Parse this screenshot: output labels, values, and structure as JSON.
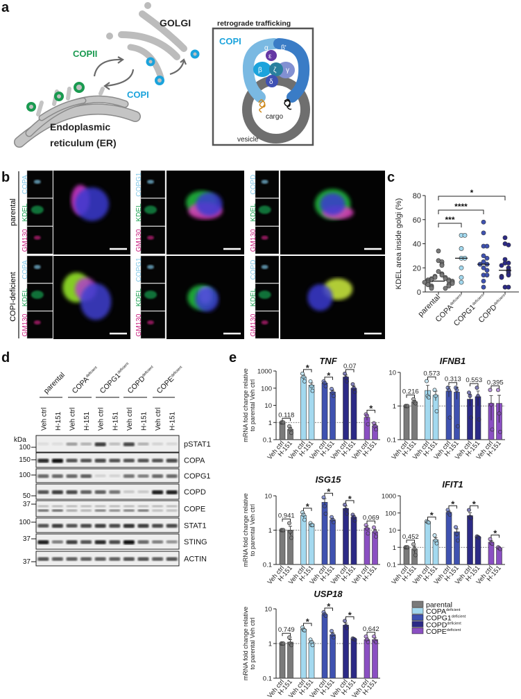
{
  "panel_labels": [
    "a",
    "b",
    "c",
    "d",
    "e"
  ],
  "panel_a": {
    "golgi": "GOLGI",
    "copii": "COPII",
    "copi": "COPI",
    "er_line1": "Endoplasmic",
    "er_line2": "reticulum (ER)",
    "box_title": "retrograde trafficking",
    "box_copi": "COPI",
    "subunits": [
      "α",
      "β'",
      "ε",
      "β",
      "ζ",
      "γ",
      "δ"
    ],
    "cargo": "cargo",
    "vesicle": "vesicle",
    "colors": {
      "copii": "#1a9a50",
      "copi": "#1ba3dc",
      "er": "#bdbdbd"
    }
  },
  "panel_b": {
    "rows": [
      "parental",
      "COPI-deficient"
    ],
    "groups": [
      {
        "target": "COPA",
        "channels": [
          "COPA",
          "KDEL",
          "GM130"
        ]
      },
      {
        "target": "COPG1",
        "channels": [
          "COPG1",
          "KDEL",
          "GM130"
        ]
      },
      {
        "target": "COPD",
        "channels": [
          "COPD",
          "KDEL",
          "GM130"
        ]
      }
    ],
    "channel_colors": {
      "target": "#7fc6e6",
      "KDEL": "#19a050",
      "GM130": "#c8207f"
    }
  },
  "legend": {
    "items": [
      {
        "name": "parental",
        "sup": "",
        "color": "#7a7a7a"
      },
      {
        "name": "COPA",
        "sup": "deficient",
        "color": "#a3d9ef"
      },
      {
        "name": "COPG1",
        "sup": "deficient",
        "color": "#3f52b0"
      },
      {
        "name": "COPD",
        "sup": "deficient",
        "color": "#2c2a86"
      },
      {
        "name": "COPE",
        "sup": "deficient",
        "color": "#8a4fc2"
      }
    ]
  },
  "panel_d": {
    "groups": [
      {
        "name": "parental",
        "sup": ""
      },
      {
        "name": "COPA",
        "sup": "deficient"
      },
      {
        "name": "COPG1",
        "sup": "deficient"
      },
      {
        "name": "COPD",
        "sup": "deficient"
      },
      {
        "name": "COPE",
        "sup": "deficient"
      }
    ],
    "lanes": [
      "Veh ctrl",
      "H-151"
    ],
    "kda_label": "kDa",
    "markers": [
      "100",
      "150",
      "100",
      "50",
      "37",
      "100",
      "37",
      "37"
    ],
    "blots": [
      {
        "name": "pSTAT1",
        "intensity": [
          0.05,
          0.05,
          0.35,
          0.25,
          0.8,
          0.2,
          0.75,
          0.25,
          0.1,
          0.08
        ]
      },
      {
        "name": "COPA",
        "intensity": [
          0.9,
          1,
          0.7,
          0.7,
          0.75,
          0.7,
          0.7,
          0.7,
          0.7,
          0.75
        ]
      },
      {
        "name": "COPG1",
        "intensity": [
          0.6,
          0.6,
          0.6,
          0.65,
          0.1,
          0.1,
          0.55,
          0.5,
          0.6,
          0.6
        ]
      },
      {
        "name": "COPD",
        "intensity": [
          0.7,
          0.8,
          0.75,
          0.65,
          0.65,
          0.55,
          0.15,
          0.15,
          0.95,
          0.95
        ]
      },
      {
        "name": "COPE",
        "intensity": [
          0.6,
          0.6,
          0.3,
          0.25,
          0.5,
          0.45,
          0.5,
          0.55,
          0.2,
          0.2
        ]
      },
      {
        "name": "STAT1",
        "intensity": [
          0.7,
          0.8,
          0.7,
          0.75,
          0.8,
          0.75,
          0.85,
          0.8,
          0.75,
          0.75
        ]
      },
      {
        "name": "STING",
        "intensity": [
          0.95,
          0.5,
          0.8,
          0.7,
          0.9,
          0.75,
          1,
          0.6,
          0.5,
          0.4
        ]
      },
      {
        "name": "ACTIN",
        "intensity": [
          0.7,
          0.65,
          0.65,
          0.65,
          0.65,
          0.65,
          0.7,
          0.7,
          0.65,
          0.7
        ]
      }
    ]
  },
  "chart_data": [
    {
      "type": "scatter",
      "ylabel": "KDEL area inside golgi (%)",
      "ylim": [
        0,
        80
      ],
      "yticks": [
        "0",
        "20",
        "40",
        "60",
        "80"
      ],
      "categories": [
        {
          "name": "parental",
          "sup": "",
          "color": "#7a7a7a"
        },
        {
          "name": "COPA",
          "sup": "deficient",
          "color": "#a3d9ef"
        },
        {
          "name": "COPG1",
          "sup": "deficient",
          "color": "#3f52b0"
        },
        {
          "name": "COPD",
          "sup": "deficient",
          "color": "#2c2a86"
        }
      ],
      "values": [
        [
          34,
          26,
          25,
          23,
          22,
          17,
          15,
          14,
          13,
          12,
          12,
          11,
          11,
          10,
          10,
          10,
          9,
          9,
          9,
          8,
          8,
          8,
          7,
          7,
          6,
          6,
          5,
          5,
          4,
          3,
          3
        ],
        [
          47,
          47,
          36,
          28,
          28,
          20,
          12,
          8
        ],
        [
          58,
          49,
          38,
          38,
          30,
          28,
          25,
          23,
          23,
          20,
          18,
          14,
          14,
          9,
          4
        ],
        [
          45,
          40,
          39,
          27,
          24,
          24,
          22,
          20,
          18,
          17,
          15,
          14,
          13,
          12,
          4,
          4
        ]
      ],
      "medians": [
        9,
        28,
        23,
        18
      ],
      "significance": [
        {
          "from": "parental",
          "to": "COPA",
          "label": "***"
        },
        {
          "from": "parental",
          "to": "COPG1",
          "label": "****"
        },
        {
          "from": "parental",
          "to": "COPD",
          "label": "*"
        }
      ]
    },
    {
      "type": "bar",
      "title": "TNF",
      "scale": "log",
      "ylim": [
        0.1,
        1000
      ],
      "yticks": [
        "0.1",
        "1",
        "10",
        "100",
        "1000"
      ],
      "ylabel": [
        "mRNA fold change relative",
        "to parental Veh ctrl"
      ],
      "bar_labels": [
        "Veh ctrl",
        "H-151"
      ],
      "groups": [
        "parental",
        "COPA deficient",
        "COPG1 deficient",
        "COPD deficient",
        "COPE deficient"
      ],
      "means": [
        [
          1,
          0.4
        ],
        [
          450,
          150
        ],
        [
          200,
          60
        ],
        [
          450,
          100
        ],
        [
          2,
          0.65
        ]
      ],
      "points": [
        [
          [
            1,
            1,
            1
          ],
          [
            0.6,
            0.4,
            0.25
          ]
        ],
        [
          [
            700,
            450,
            250
          ],
          [
            250,
            130,
            70
          ]
        ],
        [
          [
            250,
            200,
            130
          ],
          [
            90,
            55,
            35
          ]
        ],
        [
          [
            700,
            400,
            250
          ],
          [
            170,
            100,
            60
          ]
        ],
        [
          [
            3,
            2.5,
            0.8
          ],
          [
            0.9,
            0.6,
            0.4
          ]
        ]
      ],
      "annotations": [
        "0.118",
        "*",
        "*",
        "0.07",
        "*"
      ]
    },
    {
      "type": "bar",
      "title": "IFNB1",
      "scale": "log",
      "ylim": [
        0.1,
        10
      ],
      "yticks": [
        "0.1",
        "1",
        "10"
      ],
      "ylabel": [],
      "bar_labels": [
        "Veh ctrl",
        "H-151"
      ],
      "groups": [
        "parental",
        "COPA deficient",
        "COPG1 deficient",
        "COPD deficient",
        "COPE deficient"
      ],
      "means": [
        [
          1,
          1.35
        ],
        [
          2.9,
          2.1
        ],
        [
          2.8,
          2.6
        ],
        [
          1.6,
          1.9
        ],
        [
          1.2,
          1.2
        ]
      ],
      "points": [
        [
          [
            1,
            1,
            1
          ],
          [
            1.6,
            1.3,
            1.2
          ]
        ],
        [
          [
            5.5,
            2,
            1.8
          ],
          [
            3,
            2,
            0.7
          ]
        ],
        [
          [
            3.5,
            3,
            0.45
          ],
          [
            3.5,
            3,
            0.25
          ]
        ],
        [
          [
            2.5,
            2,
            0.45
          ],
          [
            3.5,
            2,
            0.4
          ]
        ],
        [
          [
            3,
            1.1,
            0.2
          ],
          [
            3,
            0.6,
            0.17
          ]
        ]
      ],
      "annotations": [
        "0.216",
        "0.573",
        "0.313",
        "0.553",
        "0.395"
      ]
    },
    {
      "type": "bar",
      "title": "ISG15",
      "scale": "log",
      "ylim": [
        0.1,
        10
      ],
      "yticks": [
        "0.1",
        "1",
        "10"
      ],
      "ylabel": [
        "mRNA fold change relative",
        "to parental Veh ctrl"
      ],
      "bar_labels": [
        "Veh ctrl",
        "H-151"
      ],
      "groups": [
        "parental",
        "COPA deficient",
        "COPG1 deficient",
        "COPD deficient",
        "COPE deficient"
      ],
      "means": [
        [
          1,
          1
        ],
        [
          2.7,
          1.5
        ],
        [
          6.5,
          2
        ],
        [
          4.3,
          2.4
        ],
        [
          1.15,
          0.9
        ]
      ],
      "points": [
        [
          [
            1,
            1,
            1
          ],
          [
            1.6,
            0.9,
            0.6
          ]
        ],
        [
          [
            3.3,
            2.8,
            2
          ],
          [
            1.6,
            1.4,
            1.4
          ]
        ],
        [
          [
            9,
            5,
            3
          ],
          [
            2.4,
            2,
            1.7
          ]
        ],
        [
          [
            5.5,
            4,
            3
          ],
          [
            2.8,
            2.4,
            1.9
          ]
        ],
        [
          [
            1.4,
            1.1,
            0.8
          ],
          [
            1.2,
            0.9,
            0.65
          ]
        ]
      ],
      "annotations": [
        "0.941",
        "*",
        "*",
        "*",
        "0.069"
      ]
    },
    {
      "type": "bar",
      "title": "IFIT1",
      "scale": "log",
      "ylim": [
        0.1,
        1000
      ],
      "yticks": [
        "0.1",
        "1",
        "10",
        "100",
        "1000"
      ],
      "ylabel": [],
      "bar_labels": [
        "Veh ctrl",
        "H-151"
      ],
      "groups": [
        "parental",
        "COPA deficient",
        "COPG1 deficient",
        "COPD deficient",
        "COPE deficient"
      ],
      "means": [
        [
          1,
          0.8
        ],
        [
          30,
          2.7
        ],
        [
          110,
          8
        ],
        [
          70,
          4
        ],
        [
          2,
          0.9
        ]
      ],
      "points": [
        [
          [
            1,
            1,
            1
          ],
          [
            1.5,
            0.8,
            0.35
          ]
        ],
        [
          [
            33,
            30,
            28
          ],
          [
            5,
            2.5,
            1.7
          ]
        ],
        [
          [
            150,
            100,
            80
          ],
          [
            15,
            6,
            2.5
          ]
        ],
        [
          [
            150,
            60,
            50
          ],
          [
            4.3,
            4,
            3.6
          ]
        ],
        [
          [
            3,
            1.8,
            1.6
          ],
          [
            1,
            0.9,
            0.8
          ]
        ]
      ],
      "annotations": [
        "0.452",
        "*",
        "*",
        "*",
        "*"
      ]
    },
    {
      "type": "bar",
      "title": "USP18",
      "scale": "log",
      "ylim": [
        0.1,
        10
      ],
      "yticks": [
        "0.1",
        "1",
        "10"
      ],
      "ylabel": [
        "mRNA fold change relative",
        "to parental Veh ctrl"
      ],
      "bar_labels": [
        "Veh ctrl",
        "H-151"
      ],
      "groups": [
        "parental",
        "COPA deficient",
        "COPG1 deficient",
        "COPD deficient",
        "COPE deficient"
      ],
      "means": [
        [
          1,
          1.1
        ],
        [
          2.6,
          1.1
        ],
        [
          7,
          1.8
        ],
        [
          3.4,
          1.35
        ],
        [
          1.3,
          1.3
        ]
      ],
      "points": [
        [
          [
            1,
            1,
            1
          ],
          [
            1.5,
            1,
            0.9
          ]
        ],
        [
          [
            2.9,
            2.5,
            2.4
          ],
          [
            1.3,
            1.1,
            0.9
          ]
        ],
        [
          [
            8,
            7,
            6.3
          ],
          [
            2.3,
            1.8,
            1.5
          ]
        ],
        [
          [
            4.5,
            3.2,
            2.8
          ],
          [
            1.4,
            1.35,
            1.3
          ]
        ],
        [
          [
            1.6,
            1.3,
            1.1
          ],
          [
            1.6,
            1.2,
            1.1
          ]
        ]
      ],
      "annotations": [
        "0.749",
        "*",
        "*",
        "*",
        "0.642"
      ]
    }
  ]
}
